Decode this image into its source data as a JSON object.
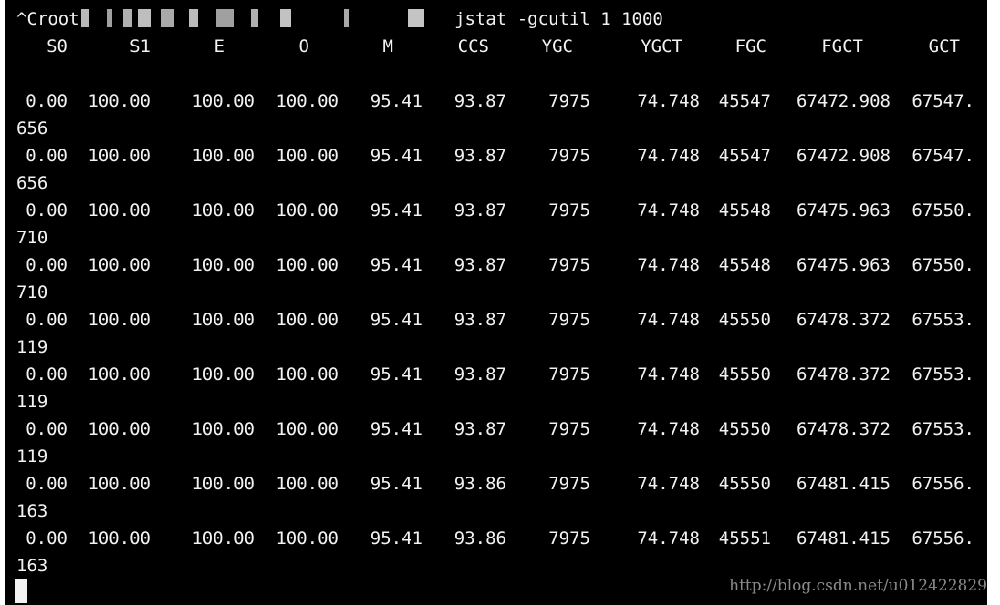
{
  "terminal": {
    "prompt_prefix": "^Croot",
    "command": "jstat -gcutil 1 1000",
    "columns": [
      "S0",
      "S1",
      "E",
      "O",
      "M",
      "CCS",
      "YGC",
      "YGCT",
      "FGC",
      "FGCT",
      "GCT"
    ],
    "rows": [
      {
        "S0": "0.00",
        "S1": "100.00",
        "E": "100.00",
        "O": "100.00",
        "M": "95.41",
        "CCS": "93.87",
        "YGC": "7975",
        "YGCT": "74.748",
        "FGC": "45547",
        "FGCT": "67472.908",
        "GCT": "67547.",
        "wrap": "656"
      },
      {
        "S0": "0.00",
        "S1": "100.00",
        "E": "100.00",
        "O": "100.00",
        "M": "95.41",
        "CCS": "93.87",
        "YGC": "7975",
        "YGCT": "74.748",
        "FGC": "45547",
        "FGCT": "67472.908",
        "GCT": "67547.",
        "wrap": "656"
      },
      {
        "S0": "0.00",
        "S1": "100.00",
        "E": "100.00",
        "O": "100.00",
        "M": "95.41",
        "CCS": "93.87",
        "YGC": "7975",
        "YGCT": "74.748",
        "FGC": "45548",
        "FGCT": "67475.963",
        "GCT": "67550.",
        "wrap": "710"
      },
      {
        "S0": "0.00",
        "S1": "100.00",
        "E": "100.00",
        "O": "100.00",
        "M": "95.41",
        "CCS": "93.87",
        "YGC": "7975",
        "YGCT": "74.748",
        "FGC": "45548",
        "FGCT": "67475.963",
        "GCT": "67550.",
        "wrap": "710"
      },
      {
        "S0": "0.00",
        "S1": "100.00",
        "E": "100.00",
        "O": "100.00",
        "M": "95.41",
        "CCS": "93.87",
        "YGC": "7975",
        "YGCT": "74.748",
        "FGC": "45550",
        "FGCT": "67478.372",
        "GCT": "67553.",
        "wrap": "119"
      },
      {
        "S0": "0.00",
        "S1": "100.00",
        "E": "100.00",
        "O": "100.00",
        "M": "95.41",
        "CCS": "93.87",
        "YGC": "7975",
        "YGCT": "74.748",
        "FGC": "45550",
        "FGCT": "67478.372",
        "GCT": "67553.",
        "wrap": "119"
      },
      {
        "S0": "0.00",
        "S1": "100.00",
        "E": "100.00",
        "O": "100.00",
        "M": "95.41",
        "CCS": "93.87",
        "YGC": "7975",
        "YGCT": "74.748",
        "FGC": "45550",
        "FGCT": "67478.372",
        "GCT": "67553.",
        "wrap": "119"
      },
      {
        "S0": "0.00",
        "S1": "100.00",
        "E": "100.00",
        "O": "100.00",
        "M": "95.41",
        "CCS": "93.86",
        "YGC": "7975",
        "YGCT": "74.748",
        "FGC": "45550",
        "FGCT": "67481.415",
        "GCT": "67556.",
        "wrap": "163"
      },
      {
        "S0": "0.00",
        "S1": "100.00",
        "E": "100.00",
        "O": "100.00",
        "M": "95.41",
        "CCS": "93.86",
        "YGC": "7975",
        "YGCT": "74.748",
        "FGC": "45551",
        "FGCT": "67481.415",
        "GCT": "67556.",
        "wrap": "163"
      }
    ]
  },
  "watermark": "http://blog.csdn.net/u012422829",
  "colors": {
    "background": "#000000",
    "text": "#f2f2f2",
    "watermark": "#9a9a9a"
  }
}
